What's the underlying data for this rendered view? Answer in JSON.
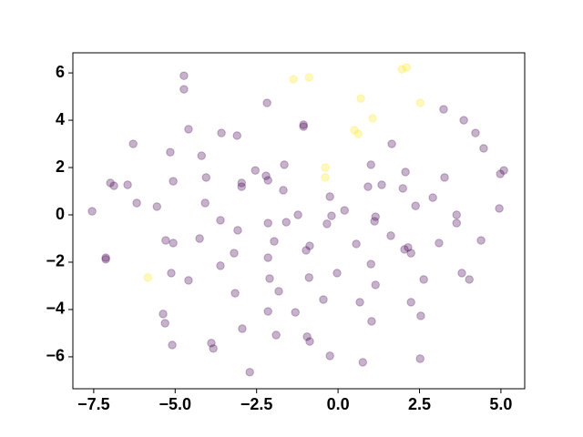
{
  "chart_data": {
    "type": "scatter",
    "xlim": [
      -8.14,
      5.73
    ],
    "ylim": [
      -7.35,
      6.85
    ],
    "xticks": [
      {
        "value": -7.5,
        "label": "−7.5"
      },
      {
        "value": -5.0,
        "label": "−5.0"
      },
      {
        "value": -2.5,
        "label": "−2.5"
      },
      {
        "value": 0,
        "label": "0.0"
      },
      {
        "value": 2.5,
        "label": "2.5"
      },
      {
        "value": 5.0,
        "label": "5.0"
      }
    ],
    "yticks": [
      {
        "value": -6,
        "label": "−6"
      },
      {
        "value": -4,
        "label": "−4"
      },
      {
        "value": -2,
        "label": "−2"
      },
      0,
      2,
      4,
      6
    ],
    "alpha": 0.3,
    "series": [
      {
        "color": "#440154",
        "x": [
          -4.73,
          -4.73,
          -2.18,
          -1.06,
          -1.06,
          -4.59,
          -3.58,
          -3.1,
          3.24,
          3.86,
          4.22,
          4.47,
          -6.29,
          1.65,
          -4.19,
          -5.15,
          -2.54,
          -2.21,
          -2.15,
          -1.65,
          -1.68,
          -4.05,
          -2.96,
          -2.96,
          -5.06,
          4.98,
          5.09,
          1.01,
          2.07,
          3.27,
          -6.99,
          -6.88,
          -6.46,
          0.92,
          1.34,
          1.99,
          -6.18,
          -0.25,
          -5.56,
          -4.08,
          4.95,
          -7.55,
          -1.23,
          0.2,
          -0.2,
          1.15,
          1.12,
          -2.15,
          -3.61,
          -1.59,
          2.38,
          2.91,
          3.64,
          -0.34,
          3.64,
          -3.08,
          -4.25,
          -5.29,
          -5.06,
          -1.96,
          0.56,
          1.62,
          2.15,
          -3.19,
          -0.98,
          -0.87,
          4.39,
          3.1,
          -2.15,
          2.04,
          2.24,
          -3.61,
          1.01,
          -5.12,
          -0.03,
          -0.89,
          3.8,
          4.03,
          -4.59,
          2.63,
          -2.1,
          1.15,
          -1.82,
          -3.16,
          -0.45,
          0.67,
          2.24,
          -5.37,
          -2.15,
          -1.31,
          -5.31,
          2.54,
          1.03,
          -2.94,
          -3.89,
          -3.83,
          -1.9,
          -0.87,
          -0.95,
          -5.09,
          -0.25,
          0.76,
          2.52,
          -2.71,
          -7.13,
          -7.13
        ],
        "values": [
          5.88,
          5.31,
          4.73,
          3.81,
          3.73,
          3.62,
          3.46,
          3.35,
          4.46,
          4.0,
          3.46,
          2.81,
          3.0,
          3.0,
          2.5,
          2.65,
          1.88,
          1.65,
          1.46,
          2.12,
          1.04,
          1.58,
          1.35,
          1.19,
          1.42,
          1.73,
          1.88,
          2.12,
          1.81,
          1.58,
          1.35,
          1.23,
          1.27,
          1.19,
          1.27,
          1.12,
          0.5,
          0.77,
          0.35,
          0.5,
          0.27,
          0.15,
          0,
          0.19,
          -0.04,
          -0.08,
          -0.27,
          -0.35,
          -0.23,
          -0.31,
          0.38,
          0.73,
          0,
          -0.38,
          -0.35,
          -0.65,
          -1.0,
          -1.08,
          -1.19,
          -1.12,
          -1.23,
          -0.88,
          -1.38,
          -1.62,
          -1.5,
          -1.31,
          -1.08,
          -1.19,
          -1.81,
          -1.46,
          -1.62,
          -2.15,
          -2.08,
          -2.46,
          -2.46,
          -2.65,
          -2.46,
          -2.73,
          -2.77,
          -2.73,
          -2.69,
          -2.96,
          -3.23,
          -3.31,
          -3.58,
          -3.69,
          -3.69,
          -4.19,
          -4.08,
          -4.12,
          -4.58,
          -4.27,
          -4.5,
          -4.81,
          -5.42,
          -5.65,
          -5.08,
          -5.35,
          -5.15,
          -5.5,
          -5.96,
          -6.23,
          -6.08,
          -6.65,
          -1.81,
          -1.88
        ]
      },
      {
        "color": "#fde725",
        "x": [
          -1.37,
          -0.89,
          1.96,
          2.1,
          0.7,
          1.06,
          2.52,
          0.5,
          0.62,
          -0.39,
          -0.39,
          -5.84
        ],
        "values": [
          5.73,
          5.81,
          6.15,
          6.23,
          4.92,
          4.08,
          4.73,
          3.58,
          3.42,
          2.0,
          1.58,
          -2.65
        ]
      }
    ]
  }
}
